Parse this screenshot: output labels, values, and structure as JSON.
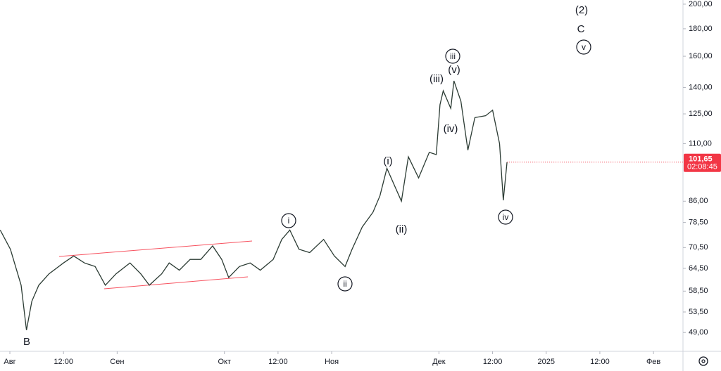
{
  "chart_data": {
    "type": "line",
    "log_scale": true,
    "color": "#2b3b33",
    "x": [
      -0.18,
      0.01,
      0.21,
      0.31,
      0.41,
      0.54,
      0.73,
      1.0,
      1.19,
      1.39,
      1.59,
      1.78,
      1.98,
      2.24,
      2.44,
      2.6,
      2.83,
      2.97,
      3.16,
      3.36,
      3.56,
      3.78,
      3.95,
      4.08,
      4.28,
      4.48,
      4.67,
      4.91,
      5.07,
      5.22,
      5.39,
      5.59,
      5.85,
      6.05,
      6.25,
      6.38,
      6.57,
      6.77,
      6.9,
      7.03,
      7.17,
      7.3,
      7.43,
      7.62,
      7.82,
      7.95,
      8.02,
      8.08,
      8.22,
      8.28,
      8.41,
      8.54,
      8.67,
      8.87,
      9.0,
      9.13,
      9.2,
      9.27
    ],
    "values": [
      76,
      70,
      60,
      49.5,
      56,
      60,
      63,
      66,
      68,
      66,
      65,
      60,
      63,
      66,
      63,
      60,
      63,
      66,
      64,
      67,
      67,
      71,
      67,
      62,
      65,
      66,
      64,
      67,
      73,
      76,
      70,
      69,
      73,
      68,
      65,
      70,
      77,
      82,
      88,
      99,
      92,
      86,
      104,
      95,
      106,
      105,
      130,
      138,
      128,
      144,
      132,
      107,
      123,
      124,
      127,
      110,
      86.3,
      101.65
    ],
    "xlim": [
      -0.184,
      12.55
    ],
    "xticks": [
      {
        "value": 0,
        "label": "Авг"
      },
      {
        "value": 1,
        "label": "12:00"
      },
      {
        "value": 2,
        "label": "Сен"
      },
      {
        "value": 4,
        "label": "Окт"
      },
      {
        "value": 5,
        "label": "12:00"
      },
      {
        "value": 6,
        "label": "Ноя"
      },
      {
        "value": 8,
        "label": "Дек"
      },
      {
        "value": 9,
        "label": "12:00"
      },
      {
        "value": 10,
        "label": "2025"
      },
      {
        "value": 11,
        "label": "12:00"
      },
      {
        "value": 12,
        "label": "Фев"
      }
    ],
    "ylim": [
      45.2,
      203.6
    ],
    "yticks": [
      {
        "value": 49,
        "label": "49,00"
      },
      {
        "value": 53.5,
        "label": "53,50"
      },
      {
        "value": 58.5,
        "label": "58,50"
      },
      {
        "value": 64.5,
        "label": "64,50"
      },
      {
        "value": 70.5,
        "label": "70,50"
      },
      {
        "value": 78.5,
        "label": "78,50"
      },
      {
        "value": 86,
        "label": "86,00"
      },
      {
        "value": 110,
        "label": "110,00"
      },
      {
        "value": 125,
        "label": "125,00"
      },
      {
        "value": 140,
        "label": "140,00"
      },
      {
        "value": 160,
        "label": "160,00"
      },
      {
        "value": 180,
        "label": "180,00"
      },
      {
        "value": 200,
        "label": "200,00"
      }
    ],
    "last_price": {
      "value": 101.65,
      "label": "101,65",
      "color": "#f23645"
    },
    "countdown": "02:08:45",
    "annotations": [
      {
        "text": "B",
        "circled": false
      },
      {
        "text": "i",
        "circled": true
      },
      {
        "text": "ii",
        "circled": true
      },
      {
        "text": "(i)",
        "circled": false
      },
      {
        "text": "(ii)",
        "circled": false
      },
      {
        "text": "(iii)",
        "circled": false
      },
      {
        "text": "iii",
        "circled": true
      },
      {
        "text": "(v)",
        "circled": false
      },
      {
        "text": "(iv)",
        "circled": false
      },
      {
        "text": "iv",
        "circled": true
      },
      {
        "text": "(2)",
        "circled": false
      },
      {
        "text": "C",
        "circled": false
      },
      {
        "text": "v",
        "circled": true
      }
    ]
  }
}
